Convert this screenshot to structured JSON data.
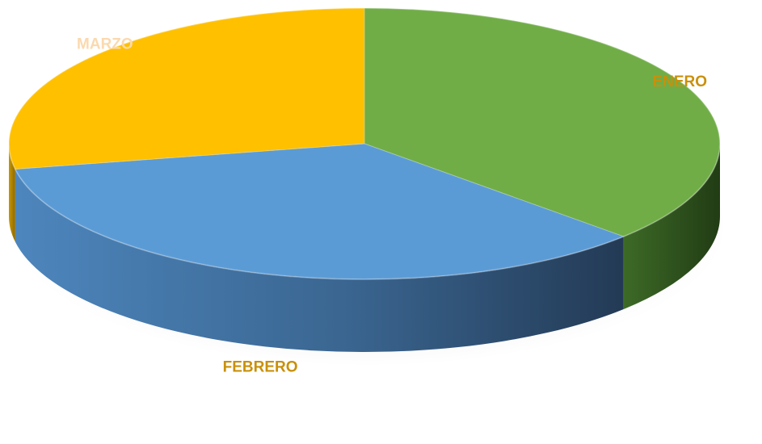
{
  "chart_data": {
    "type": "pie",
    "style": "3d",
    "title": "",
    "slices": [
      {
        "label": "ENERO",
        "value": 37,
        "color": "#70AD47",
        "label_color": "#C9900A"
      },
      {
        "label": "FEBRERO",
        "value": 35,
        "color": "#5B9BD5",
        "label_color": "#C9900A"
      },
      {
        "label": "MARZO",
        "value": 28,
        "color": "#FFC000",
        "label_color": "#FBD9AE"
      }
    ],
    "grid": false,
    "legend": "none"
  }
}
